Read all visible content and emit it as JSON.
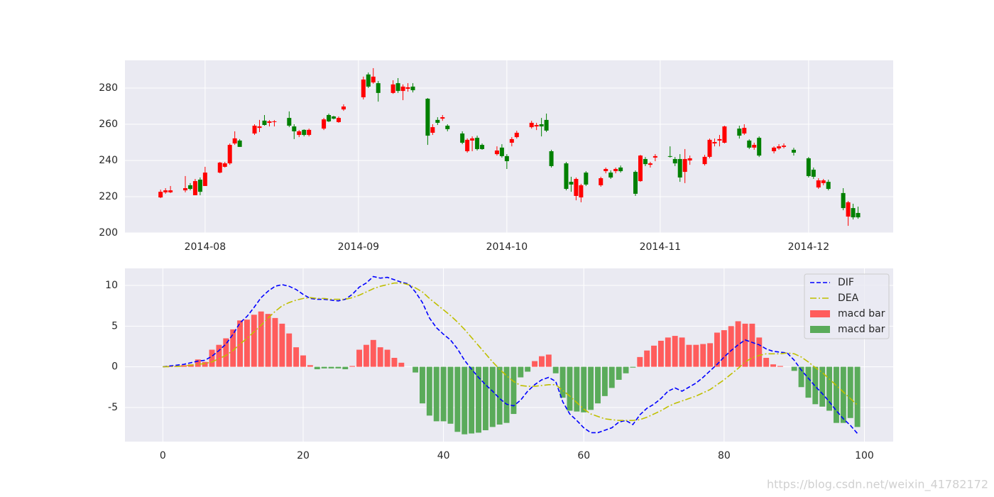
{
  "chart_data": [
    {
      "type": "candlestick",
      "up_color": "#ff0000",
      "down_color": "#008000",
      "grid": true,
      "xlim": [
        196.8,
        352.1
      ],
      "ylim": [
        200,
        295.3
      ],
      "xticks": [
        {
          "value": 213,
          "label": "2014-08"
        },
        {
          "value": 244,
          "label": "2014-09"
        },
        {
          "value": 274,
          "label": "2014-10"
        },
        {
          "value": 305,
          "label": "2014-11"
        },
        {
          "value": 335,
          "label": "2014-12"
        }
      ],
      "yticks": [
        200,
        220,
        240,
        260,
        280
      ],
      "x": [
        204,
        205,
        206,
        209,
        210,
        211,
        212,
        213,
        216,
        217,
        218,
        219,
        220,
        223,
        224,
        225,
        226,
        227,
        230,
        231,
        232,
        233,
        234,
        237,
        238,
        239,
        240,
        241,
        245,
        246,
        247,
        248,
        251,
        252,
        253,
        254,
        255,
        258,
        259,
        260,
        261,
        262,
        265,
        266,
        267,
        268,
        269,
        272,
        273,
        274,
        275,
        276,
        279,
        280,
        281,
        282,
        283,
        286,
        287,
        288,
        289,
        290,
        293,
        294,
        295,
        296,
        297,
        300,
        301,
        302,
        303,
        304,
        307,
        308,
        309,
        310,
        311,
        314,
        315,
        316,
        317,
        318,
        321,
        322,
        323,
        324,
        325,
        328,
        329,
        330,
        332,
        335,
        336,
        337,
        338,
        339,
        342,
        343,
        344,
        345
      ],
      "open": [
        219.6,
        222.4,
        222.4,
        223.5,
        226.3,
        220.8,
        229.4,
        225.9,
        233.3,
        236.5,
        238.4,
        249.4,
        251.0,
        254.9,
        258.0,
        262.0,
        260.8,
        261.2,
        263.5,
        258.8,
        254.1,
        256.9,
        254.1,
        257.6,
        265.1,
        264.3,
        261.2,
        268.2,
        274.9,
        287.5,
        283.1,
        282.7,
        277.3,
        282.7,
        278.4,
        279.6,
        280.8,
        274.1,
        255.3,
        262.4,
        263.1,
        259.2,
        254.9,
        245.1,
        251.0,
        252.5,
        248.6,
        243.5,
        247.1,
        242.4,
        249.8,
        252.9,
        258.4,
        258.8,
        260.0,
        262.4,
        245.1,
        238.4,
        228.2,
        220.4,
        219.6,
        233.3,
        226.3,
        234.1,
        233.3,
        234.1,
        236.1,
        233.7,
        228.6,
        240.8,
        237.6,
        241.6,
        242.4,
        240.8,
        240.8,
        233.7,
        240.0,
        238.0,
        242.0,
        249.4,
        251.0,
        249.8,
        257.6,
        254.9,
        251.0,
        247.1,
        252.5,
        245.1,
        246.7,
        247.5,
        245.9,
        241.2,
        234.9,
        225.1,
        227.5,
        228.2,
        222.0,
        209.0,
        213.7,
        211.0
      ],
      "high": [
        223.9,
        224.7,
        225.9,
        231.4,
        227.5,
        229.8,
        230.6,
        236.5,
        239.2,
        239.2,
        249.4,
        256.1,
        251.8,
        260.0,
        262.4,
        265.1,
        262.3,
        262.3,
        267.1,
        260.0,
        256.8,
        257.2,
        257.6,
        263.5,
        265.9,
        264.7,
        264.3,
        271.0,
        286.3,
        288.6,
        291.0,
        283.9,
        284.3,
        285.5,
        282.0,
        282.7,
        282.7,
        274.5,
        260.0,
        263.9,
        265.1,
        260.0,
        256.1,
        252.2,
        253.3,
        253.7,
        249.4,
        247.8,
        249.0,
        243.5,
        252.9,
        256.4,
        261.9,
        260.8,
        263.5,
        265.9,
        245.9,
        239.2,
        231.0,
        230.6,
        227.1,
        234.1,
        231.0,
        236.1,
        234.5,
        236.1,
        237.2,
        234.5,
        243.1,
        241.9,
        239.2,
        243.5,
        247.8,
        241.9,
        243.5,
        246.3,
        242.7,
        243.1,
        252.1,
        252.1,
        254.1,
        259.2,
        259.2,
        260.0,
        251.7,
        249.8,
        253.3,
        247.8,
        249.0,
        249.4,
        247.0,
        241.9,
        236.1,
        230.2,
        229.8,
        229.4,
        224.7,
        217.6,
        216.1,
        214.5
      ],
      "low": [
        219.2,
        221.6,
        222.0,
        222.4,
        223.5,
        220.8,
        220.8,
        225.9,
        232.9,
        236.1,
        237.6,
        248.6,
        247.5,
        254.1,
        255.7,
        259.2,
        258.8,
        258.8,
        258.4,
        251.8,
        252.9,
        253.3,
        253.3,
        256.8,
        261.2,
        262.7,
        260.8,
        267.4,
        273.7,
        280.0,
        282.4,
        272.5,
        276.8,
        277.3,
        273.3,
        278.0,
        277.6,
        248.6,
        254.1,
        259.6,
        261.9,
        256.1,
        249.0,
        244.3,
        245.1,
        245.5,
        245.9,
        242.7,
        241.6,
        235.3,
        247.8,
        252.1,
        257.6,
        256.8,
        253.3,
        255.7,
        236.1,
        223.5,
        222.7,
        218.0,
        216.9,
        225.9,
        225.5,
        232.9,
        229.8,
        232.9,
        233.3,
        220.4,
        228.2,
        236.9,
        236.1,
        239.6,
        241.6,
        236.9,
        228.2,
        227.5,
        237.6,
        237.2,
        241.2,
        247.8,
        247.8,
        249.4,
        252.1,
        254.1,
        246.3,
        245.9,
        241.9,
        243.9,
        245.9,
        246.7,
        242.7,
        230.6,
        229.8,
        224.3,
        226.3,
        223.5,
        212.5,
        203.9,
        207.4,
        207.8
      ],
      "close": [
        222.7,
        223.5,
        223.5,
        224.7,
        224.3,
        228.6,
        222.7,
        233.3,
        238.8,
        238.4,
        248.6,
        252.2,
        247.5,
        259.2,
        258.8,
        259.6,
        261.6,
        261.6,
        259.2,
        256.1,
        256.1,
        254.1,
        256.9,
        262.7,
        261.6,
        263.1,
        263.5,
        269.8,
        284.7,
        280.8,
        286.3,
        277.3,
        282.0,
        278.4,
        280.8,
        280.4,
        278.8,
        253.7,
        258.4,
        260.8,
        263.9,
        257.3,
        249.8,
        251.4,
        252.2,
        246.3,
        246.3,
        245.5,
        242.4,
        239.6,
        251.8,
        255.3,
        260.8,
        259.6,
        258.8,
        256.5,
        236.9,
        224.3,
        226.7,
        229.8,
        226.3,
        226.7,
        230.2,
        235.3,
        230.6,
        235.3,
        234.1,
        221.6,
        242.7,
        238.0,
        238.4,
        242.4,
        242.0,
        238.4,
        230.6,
        240.8,
        241.2,
        242.0,
        251.4,
        250.2,
        251.8,
        258.8,
        253.7,
        258.0,
        247.1,
        248.6,
        242.7,
        247.1,
        247.8,
        248.2,
        244.3,
        231.4,
        231.0,
        229.0,
        229.0,
        224.3,
        213.7,
        216.9,
        208.6,
        208.6
      ]
    },
    {
      "type": "macd",
      "grid": true,
      "legend": "upper right",
      "xlim": [
        -5.4,
        104.1
      ],
      "ylim": [
        -9.2,
        12.1
      ],
      "xticks": [
        0,
        20,
        40,
        60,
        80,
        100
      ],
      "yticks": [
        -5,
        0,
        5,
        10
      ],
      "x": [
        0,
        1,
        2,
        3,
        4,
        5,
        6,
        7,
        8,
        9,
        10,
        11,
        12,
        13,
        14,
        15,
        16,
        17,
        18,
        19,
        20,
        21,
        22,
        23,
        24,
        25,
        26,
        27,
        28,
        29,
        30,
        31,
        32,
        33,
        34,
        35,
        36,
        37,
        38,
        39,
        40,
        41,
        42,
        43,
        44,
        45,
        46,
        47,
        48,
        49,
        50,
        51,
        52,
        53,
        54,
        55,
        56,
        57,
        58,
        59,
        60,
        61,
        62,
        63,
        64,
        65,
        66,
        67,
        68,
        69,
        70,
        71,
        72,
        73,
        74,
        75,
        76,
        77,
        78,
        79,
        80,
        81,
        82,
        83,
        84,
        85,
        86,
        87,
        88,
        89,
        90,
        91,
        92,
        93,
        94,
        95,
        96,
        97,
        98,
        99
      ],
      "series": [
        {
          "name": "DIF",
          "kind": "line",
          "dash": "dashed",
          "color": "#0000ff",
          "values": [
            0,
            0.1,
            0.2,
            0.3,
            0.5,
            0.7,
            0.8,
            1.3,
            2.0,
            2.8,
            4.0,
            5.4,
            6.2,
            7.3,
            8.5,
            9.3,
            9.9,
            10.1,
            9.9,
            9.5,
            8.9,
            8.4,
            8.3,
            8.3,
            8.2,
            8.1,
            8.3,
            8.9,
            9.8,
            10.3,
            11.1,
            10.9,
            11.0,
            10.7,
            10.4,
            10.2,
            9.2,
            7.9,
            6.0,
            4.8,
            4.0,
            3.3,
            2.2,
            0.8,
            -0.3,
            -1.3,
            -2.2,
            -3.0,
            -3.9,
            -4.6,
            -4.8,
            -4.1,
            -3.0,
            -2.2,
            -1.6,
            -1.3,
            -1.8,
            -4.3,
            -5.8,
            -6.6,
            -7.5,
            -8.1,
            -8.1,
            -7.8,
            -7.5,
            -6.8,
            -6.6,
            -7.1,
            -5.9,
            -5.1,
            -4.6,
            -3.9,
            -3.0,
            -2.6,
            -3.0,
            -2.5,
            -2.0,
            -1.3,
            -0.5,
            0.3,
            1.2,
            2.0,
            2.7,
            3.3,
            3.0,
            2.7,
            2.2,
            1.9,
            1.8,
            1.7,
            0.8,
            -0.4,
            -1.4,
            -2.4,
            -3.3,
            -4.3,
            -5.4,
            -6.4,
            -7.2,
            -8.2
          ]
        },
        {
          "name": "DEA",
          "kind": "line",
          "dash": "dashdot",
          "color": "#bfbf00",
          "values": [
            0,
            0.02,
            0.05,
            0.1,
            0.2,
            0.3,
            0.4,
            0.6,
            1.0,
            1.4,
            2.0,
            2.8,
            3.5,
            4.3,
            5.1,
            6.0,
            6.8,
            7.5,
            7.9,
            8.2,
            8.4,
            8.5,
            8.4,
            8.4,
            8.3,
            8.3,
            8.3,
            8.5,
            8.8,
            9.2,
            9.6,
            9.9,
            10.1,
            10.3,
            10.3,
            10.1,
            9.7,
            9.2,
            8.4,
            7.7,
            7.0,
            6.3,
            5.5,
            4.6,
            3.6,
            2.6,
            1.6,
            0.6,
            -0.3,
            -1.1,
            -1.8,
            -2.3,
            -2.4,
            -2.4,
            -2.3,
            -2.2,
            -2.2,
            -2.9,
            -3.6,
            -4.4,
            -5.2,
            -5.8,
            -6.1,
            -6.4,
            -6.5,
            -6.6,
            -6.6,
            -6.6,
            -6.5,
            -6.2,
            -5.8,
            -5.4,
            -4.9,
            -4.5,
            -4.2,
            -3.9,
            -3.6,
            -3.2,
            -2.8,
            -2.2,
            -1.6,
            -0.9,
            -0.2,
            0.6,
            1.1,
            1.4,
            1.6,
            1.6,
            1.6,
            1.7,
            1.6,
            1.2,
            0.6,
            -0.1,
            -0.7,
            -1.5,
            -2.3,
            -3.1,
            -3.9,
            -4.7
          ]
        },
        {
          "name": "macd bar",
          "kind": "bar",
          "color": "#ff5c5c",
          "values": [
            0.0,
            0.1,
            0.1,
            0.2,
            0.3,
            0.9,
            0.6,
            2.1,
            2.7,
            3.5,
            4.6,
            5.7,
            5.8,
            6.4,
            6.8,
            6.5,
            6.0,
            5.3,
            4.1,
            2.4,
            1.4,
            0.2,
            null,
            null,
            null,
            null,
            null,
            0.1,
            2.1,
            2.7,
            3.3,
            2.4,
            2.1,
            1.1,
            0.5,
            0.0,
            null,
            null,
            null,
            null,
            null,
            null,
            null,
            null,
            null,
            null,
            null,
            null,
            null,
            null,
            null,
            null,
            null,
            0.7,
            1.3,
            1.5,
            null,
            null,
            null,
            null,
            null,
            null,
            null,
            null,
            null,
            null,
            null,
            null,
            1.2,
            2.0,
            2.6,
            3.2,
            3.6,
            3.8,
            3.6,
            2.7,
            2.7,
            2.8,
            2.9,
            4.2,
            4.5,
            5.0,
            5.6,
            5.3,
            5.3,
            3.6,
            1.1,
            0.3,
            0.1,
            0.0,
            null,
            null,
            null,
            null,
            null,
            null,
            null,
            null,
            null,
            null
          ]
        },
        {
          "name": "macd bar",
          "kind": "bar",
          "color": "#5aab5a",
          "values": [
            null,
            null,
            null,
            null,
            null,
            null,
            null,
            null,
            null,
            null,
            null,
            null,
            null,
            null,
            null,
            null,
            null,
            null,
            null,
            null,
            null,
            null,
            -0.3,
            -0.2,
            -0.2,
            -0.2,
            -0.3,
            null,
            null,
            null,
            null,
            null,
            null,
            null,
            null,
            null,
            -0.7,
            -4.5,
            -6.0,
            -6.7,
            -6.7,
            -7.0,
            -8.0,
            -8.3,
            -8.2,
            -8.1,
            -7.8,
            -7.4,
            -7.1,
            -6.9,
            -5.8,
            -1.3,
            -0.6,
            null,
            null,
            null,
            -0.8,
            -3.8,
            -5.4,
            -5.5,
            -5.6,
            -5.3,
            -4.5,
            -3.6,
            -2.6,
            -1.6,
            -0.8,
            -0.1,
            null,
            null,
            null,
            null,
            null,
            null,
            null,
            null,
            null,
            null,
            null,
            null,
            null,
            null,
            null,
            null,
            null,
            null,
            null,
            null,
            null,
            null,
            -0.5,
            -2.5,
            -3.8,
            -4.6,
            -4.9,
            -5.4,
            -6.9,
            -6.9,
            -6.3,
            -7.4
          ]
        }
      ]
    }
  ],
  "watermark": "https://blog.csdn.net/weixin_41782172"
}
